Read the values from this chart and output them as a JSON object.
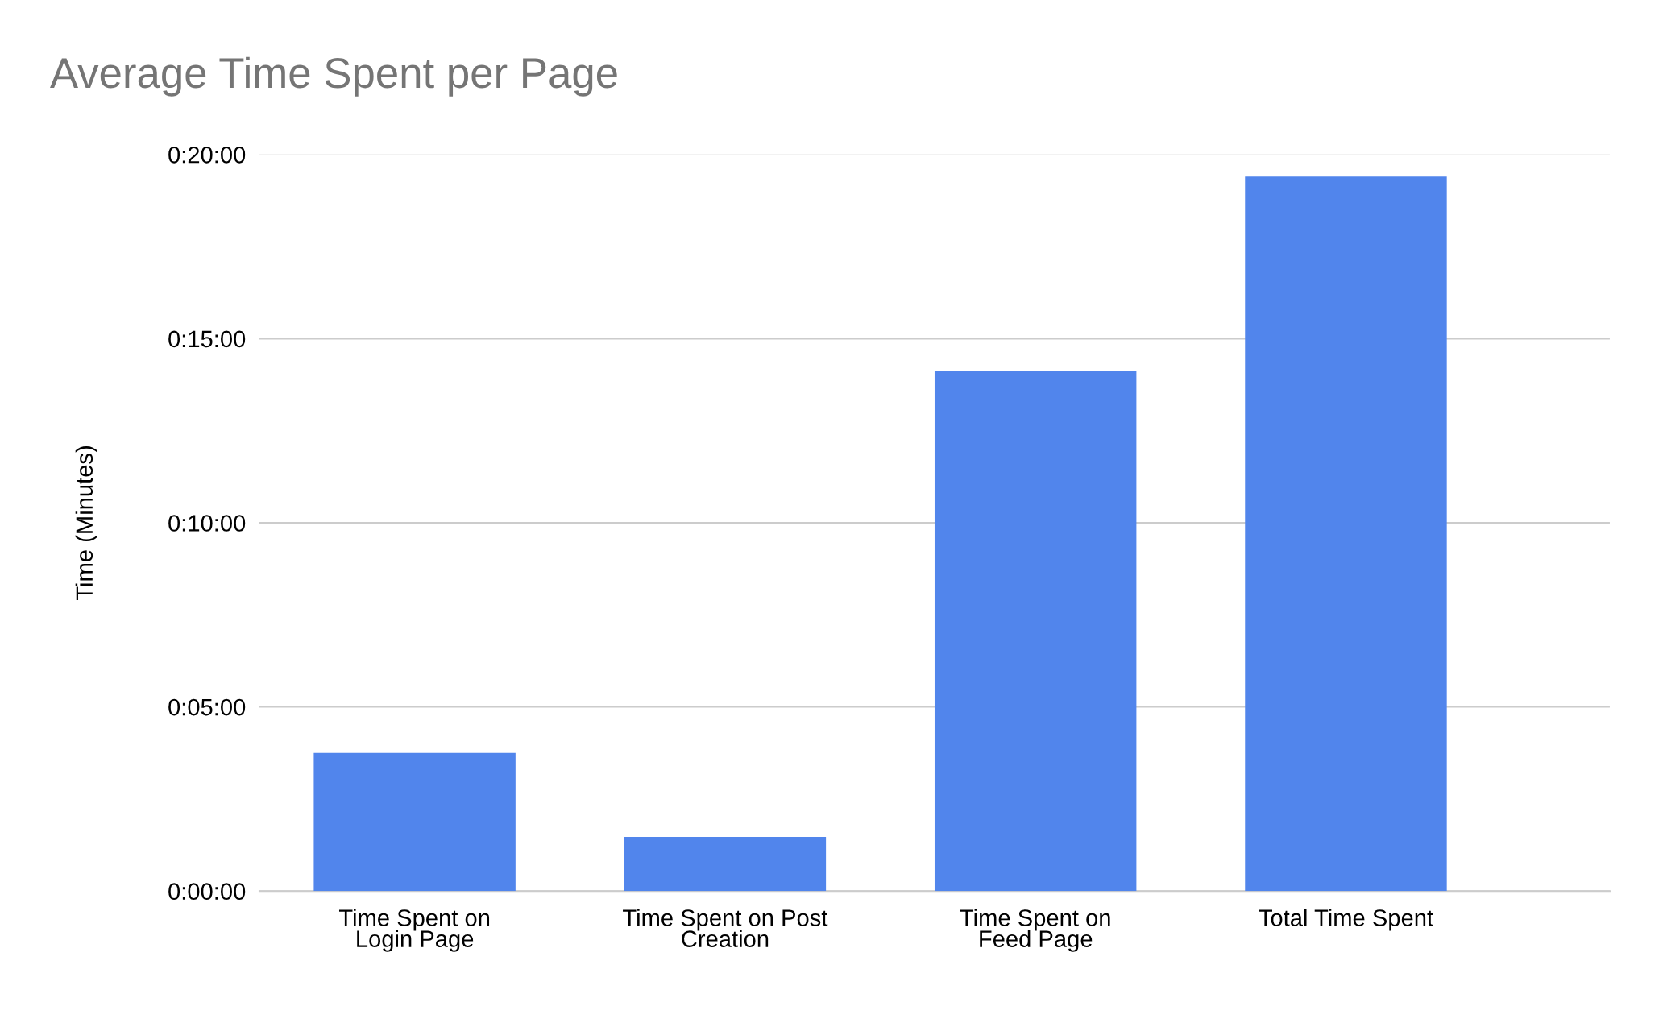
{
  "chart_data": {
    "type": "bar",
    "title": "Average Time Spent per Page",
    "ylabel": "Time (Minutes)",
    "categories": [
      "Time Spent on\nLogin Page",
      "Time Spent on Post\nCreation",
      "Time Spent on\nFeed Page",
      "Total Time Spent"
    ],
    "values": [
      3.75,
      1.47,
      14.12,
      19.4
    ],
    "color": "#5185ec",
    "ylim": [
      0,
      20
    ],
    "yticks": [
      {
        "value": 0,
        "label": "0:00:00"
      },
      {
        "value": 5,
        "label": "0:05:00"
      },
      {
        "value": 10,
        "label": "0:10:00"
      },
      {
        "value": 15,
        "label": "0:15:00"
      },
      {
        "value": 20,
        "label": "0:20:00"
      }
    ],
    "grid": "y"
  }
}
